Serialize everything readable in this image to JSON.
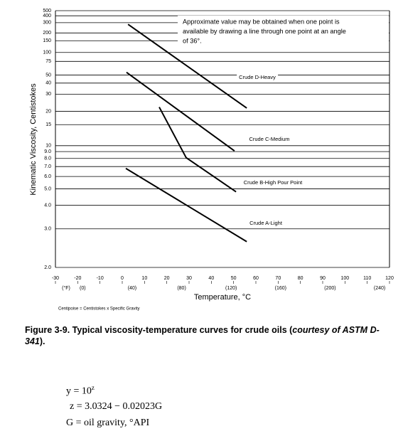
{
  "chart_data": {
    "type": "line",
    "ylabel": "Kinematic Viscosity, Centistokes",
    "xlabel": "Temperature, °C",
    "x2_label": "(°F)",
    "footnote": "Centipoise = Centistokes x Specific Gravity",
    "annotation_lines": [
      "Approximate value may be obtained when one point is",
      "available by drawing a line through one point at an angle",
      "of 36°."
    ],
    "yscale": "astm-d341",
    "ylim": [
      2,
      500
    ],
    "yticks": [
      {
        "value": 2,
        "label": "2.0"
      },
      {
        "value": 3,
        "label": "3.0"
      },
      {
        "value": 4,
        "label": "4.0"
      },
      {
        "value": 5,
        "label": "5.0"
      },
      {
        "value": 6,
        "label": "6.0"
      },
      {
        "value": 7,
        "label": "7.0"
      },
      {
        "value": 8,
        "label": "8.0"
      },
      {
        "value": 9,
        "label": "9.0"
      },
      10,
      15,
      20,
      30,
      40,
      50,
      75,
      100,
      150,
      200,
      300,
      400,
      500
    ],
    "xlim": [
      -30,
      120
    ],
    "xticks": [
      -30,
      -20,
      -10,
      0,
      10,
      20,
      30,
      40,
      50,
      60,
      70,
      80,
      90,
      100,
      110,
      120
    ],
    "x2lim": [
      -22,
      248
    ],
    "x2ticks": [
      {
        "value": 0,
        "label": "(0)"
      },
      {
        "value": 40,
        "label": "(40)"
      },
      {
        "value": 80,
        "label": "(80)"
      },
      {
        "value": 120,
        "label": "(120)"
      },
      {
        "value": 160,
        "label": "(160)"
      },
      {
        "value": 200,
        "label": "(200)"
      },
      {
        "value": 240,
        "label": "(240)"
      }
    ],
    "grid": true,
    "series": [
      {
        "name": "Crude A-Light",
        "color": "#000000",
        "x": [
          1.6,
          55.9
        ],
        "values": [
          6.8,
          2.6
        ]
      },
      {
        "name": "Crude B-High Pour Point",
        "color": "#000000",
        "x": [
          16.6,
          28.7,
          51.1
        ],
        "values": [
          22,
          8.1,
          4.8
        ]
      },
      {
        "name": "Crude C-Medium",
        "color": "#000000",
        "x": [
          1.9,
          50.4
        ],
        "values": [
          54,
          9.1
        ]
      },
      {
        "name": "Crude D-Heavy",
        "color": "#000000",
        "x": [
          2.6,
          55.9
        ],
        "values": [
          280,
          21.5
        ]
      }
    ]
  },
  "caption": {
    "lead": "Figure 3-9. Typical viscosity-temperature curves for crude oils (",
    "italic": "courtesy of ASTM D-341",
    "tail": ")."
  },
  "equations": {
    "y_lhs": "y = 10",
    "y_exp": "z",
    "z": "z = 3.0324 − 0.02023G",
    "g": "G = oil gravity, °API"
  }
}
